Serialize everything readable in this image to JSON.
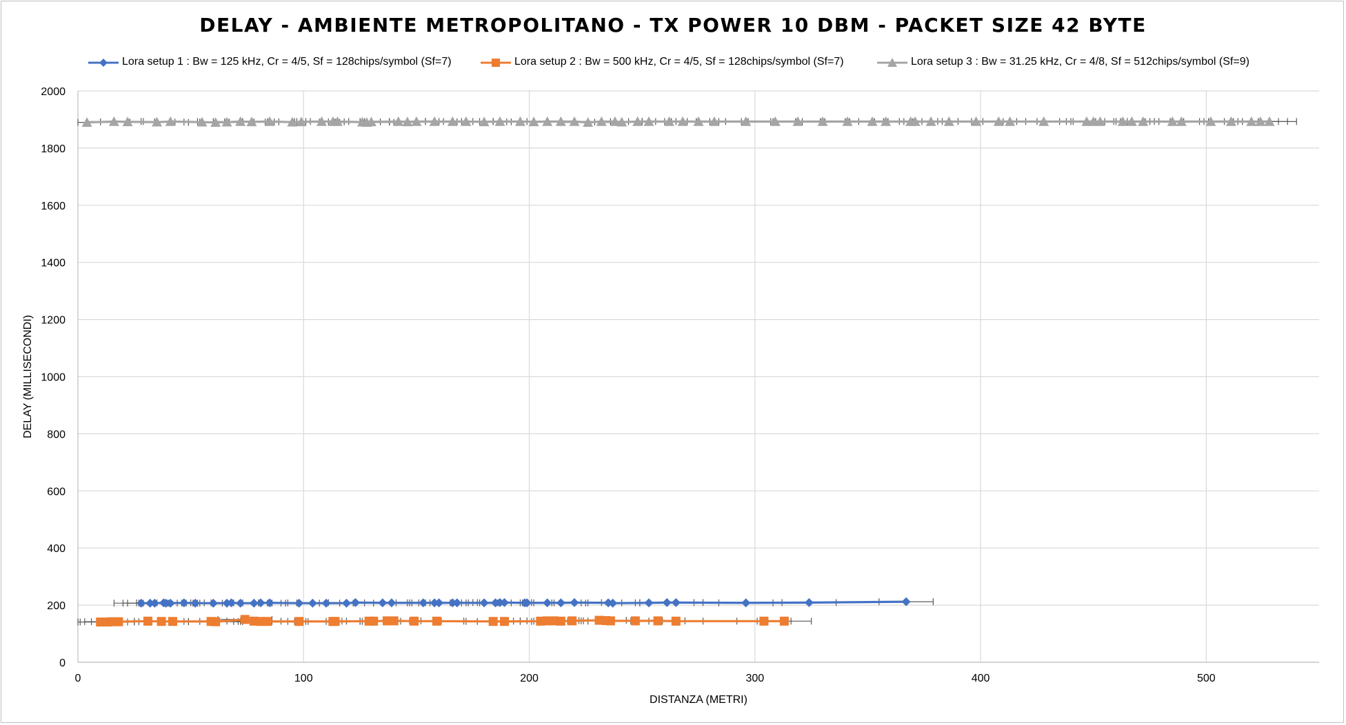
{
  "chart_data": {
    "type": "scatter",
    "title": "DELAY  - AMBIENTE  METROPOLITANO  - TX POWER  10  DBM  - PACKET  SIZE  42  BYTE",
    "xlabel": "DISTANZA (METRI)",
    "ylabel": "DELAY (MILLISECONDI)",
    "xlim": [
      0,
      550
    ],
    "ylim": [
      0,
      2000
    ],
    "x_ticks": [
      "0",
      "100",
      "200",
      "300",
      "400",
      "500"
    ],
    "y_ticks": [
      "0",
      "200",
      "400",
      "600",
      "800",
      "1000",
      "1200",
      "1400",
      "1600",
      "1800",
      "2000"
    ],
    "grid": true,
    "legend_position": "top",
    "error_bars": "horizontal",
    "series": [
      {
        "name": "Lora setup 1 : Bw = 125 kHz, Cr = 4/5, Sf = 128chips/symbol (Sf=7)",
        "color": "#4472c4",
        "marker": "diamond",
        "x": [
          28,
          32,
          34,
          38,
          39,
          41,
          47,
          52,
          60,
          66,
          68,
          72,
          78,
          81,
          85,
          98,
          104,
          110,
          119,
          123,
          135,
          139,
          153,
          158,
          160,
          166,
          168,
          180,
          185,
          187,
          189,
          198,
          199,
          208,
          214,
          220,
          235,
          237,
          253,
          261,
          265,
          296,
          324,
          367
        ],
        "y": [
          207,
          207,
          207,
          208,
          207,
          207,
          208,
          207,
          207,
          207,
          208,
          207,
          207,
          208,
          208,
          207,
          207,
          207,
          207,
          209,
          208,
          208,
          208,
          208,
          208,
          208,
          208,
          208,
          208,
          209,
          209,
          208,
          208,
          208,
          208,
          209,
          208,
          207,
          208,
          209,
          209,
          208,
          209,
          212
        ]
      },
      {
        "name": "Lora setup 2 : Bw = 500 kHz, Cr = 4/5, Sf = 128chips/symbol (Sf=7)",
        "color": "#ed7d31",
        "marker": "square",
        "x": [
          10,
          13,
          15,
          18,
          31,
          37,
          42,
          59,
          61,
          74,
          78,
          81,
          84,
          98,
          113,
          114,
          129,
          131,
          137,
          140,
          149,
          159,
          184,
          189,
          205,
          208,
          211,
          214,
          219,
          231,
          234,
          236,
          247,
          257,
          265,
          304,
          313
        ],
        "y": [
          141,
          141,
          142,
          142,
          144,
          143,
          143,
          143,
          142,
          150,
          144,
          143,
          143,
          143,
          143,
          143,
          144,
          144,
          145,
          145,
          144,
          144,
          143,
          143,
          144,
          145,
          145,
          144,
          145,
          147,
          146,
          145,
          145,
          145,
          144,
          144,
          144
        ]
      },
      {
        "name": "Lora setup 3 : Bw = 31.25 kHz, Cr = 4/8, Sf = 512chips/symbol (Sf=9)",
        "color": "#a5a5a5",
        "marker": "triangle",
        "x": [
          4,
          16,
          22,
          35,
          41,
          55,
          61,
          66,
          72,
          77,
          85,
          95,
          99,
          108,
          113,
          115,
          126,
          128,
          130,
          142,
          146,
          150,
          158,
          166,
          172,
          180,
          187,
          196,
          202,
          208,
          214,
          220,
          226,
          232,
          238,
          241,
          248,
          253,
          262,
          268,
          275,
          282,
          296,
          309,
          319,
          330,
          341,
          352,
          358,
          369,
          371,
          378,
          386,
          398,
          408,
          413,
          428,
          447,
          450,
          453,
          463,
          467,
          472,
          485,
          489,
          502,
          511,
          520,
          524,
          528
        ],
        "y": [
          1890,
          1893,
          1892,
          1891,
          1893,
          1891,
          1890,
          1891,
          1893,
          1892,
          1893,
          1891,
          1892,
          1893,
          1893,
          1893,
          1891,
          1890,
          1892,
          1893,
          1892,
          1893,
          1893,
          1893,
          1893,
          1892,
          1893,
          1893,
          1892,
          1893,
          1893,
          1893,
          1890,
          1893,
          1893,
          1891,
          1893,
          1893,
          1893,
          1893,
          1893,
          1893,
          1893,
          1893,
          1893,
          1893,
          1893,
          1893,
          1893,
          1893,
          1893,
          1893,
          1893,
          1893,
          1893,
          1893,
          1893,
          1893,
          1893,
          1893,
          1893,
          1893,
          1893,
          1893,
          1893,
          1893,
          1893,
          1893,
          1893,
          1893
        ]
      }
    ]
  }
}
